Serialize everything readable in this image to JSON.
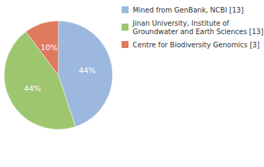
{
  "chart_data": {
    "type": "pie",
    "categories": [
      "Mined from GenBank, NCBI [13]",
      "Jinan University, Institute of Groundwater and Earth Sciences [13]",
      "Centre for Biodiversity Genomics [3]"
    ],
    "values": [
      44,
      44,
      10
    ],
    "value_labels": [
      "44%",
      "44%",
      "10%"
    ],
    "colors": [
      "#9cb8df",
      "#9ec66f",
      "#df7a5f"
    ],
    "data_labels": true,
    "legend": "top-right"
  }
}
